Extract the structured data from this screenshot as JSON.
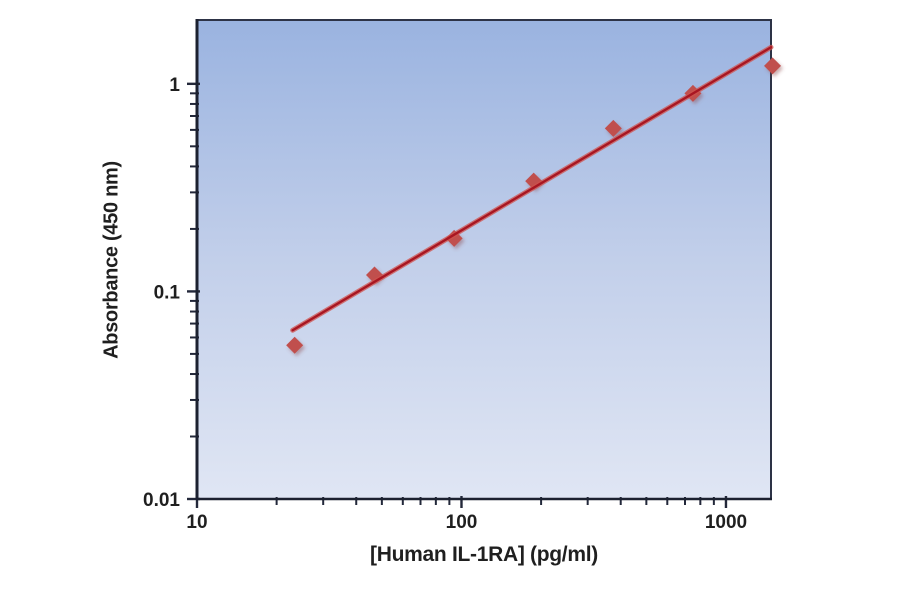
{
  "figure": {
    "background_color": "#ffffff"
  },
  "chart_data": {
    "type": "scatter",
    "title": "",
    "xlabel": "[Human IL-1RA] (pg/ml)",
    "ylabel": "Absorbance (450 nm)",
    "x_scale": "log",
    "y_scale": "log",
    "xlim": [
      10,
      1480
    ],
    "ylim": [
      0.01,
      2.03
    ],
    "grid": false,
    "legend_position": "none",
    "x_major_ticks": [
      10,
      100,
      1000
    ],
    "x_tick_labels": [
      "10",
      "100",
      "1000"
    ],
    "y_major_ticks": [
      1,
      0.1,
      0.01
    ],
    "y_tick_labels": [
      "1",
      "0.1",
      "0.01"
    ],
    "series": [
      {
        "marker": "diamond",
        "marker_color": "#c0504d",
        "x": [
          23.4,
          46.9,
          93.8,
          187.5,
          375,
          750,
          1500
        ],
        "y": [
          0.055,
          0.12,
          0.18,
          0.34,
          0.61,
          0.9,
          1.22
        ]
      }
    ],
    "trendline": {
      "x1": 23,
      "y1": 0.065,
      "x2": 1480,
      "y2": 1.5,
      "core_color": "#a81622",
      "halo_color": "#d0524c"
    },
    "colors": {
      "plot_bg_top": "#9ab3e0",
      "plot_bg_mid": "#c2cfea",
      "plot_bg_bottom": "#e0e6f4",
      "border": "#2d3346",
      "axis": "#1c2130",
      "tick": "#23283a",
      "text": "#1f1f1f"
    }
  }
}
